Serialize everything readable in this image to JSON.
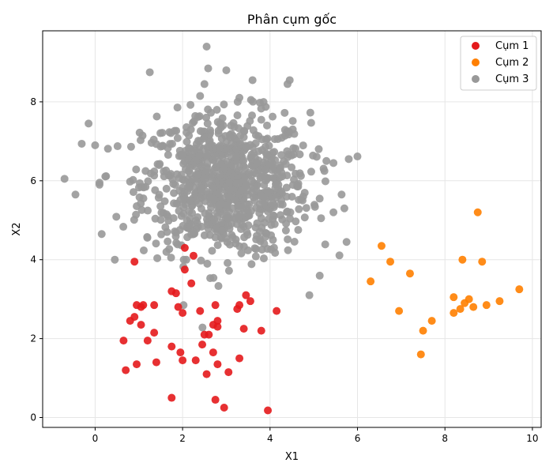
{
  "chart_data": {
    "type": "scatter",
    "title": "Phân cụm gốc",
    "xlabel": "X1",
    "ylabel": "X2",
    "xlim": [
      -1.2,
      10.2
    ],
    "ylim": [
      -0.25,
      9.8
    ],
    "xticks": [
      0,
      2,
      4,
      6,
      8,
      10
    ],
    "yticks": [
      0,
      2,
      4,
      6,
      8
    ],
    "grid": true,
    "legend_position": "top-right",
    "series": [
      {
        "name": "Cụm 1",
        "color": "#e41a1c",
        "points": [
          [
            0.9,
            3.95
          ],
          [
            2.05,
            4.3
          ],
          [
            2.25,
            4.1
          ],
          [
            2.05,
            3.75
          ],
          [
            2.2,
            3.4
          ],
          [
            1.75,
            3.2
          ],
          [
            1.85,
            3.15
          ],
          [
            0.95,
            2.85
          ],
          [
            1.05,
            2.8
          ],
          [
            1.1,
            2.85
          ],
          [
            1.35,
            2.85
          ],
          [
            1.9,
            2.8
          ],
          [
            2.0,
            2.65
          ],
          [
            2.4,
            2.7
          ],
          [
            2.75,
            2.85
          ],
          [
            3.25,
            2.75
          ],
          [
            3.3,
            2.85
          ],
          [
            3.45,
            3.1
          ],
          [
            3.55,
            2.95
          ],
          [
            4.15,
            2.7
          ],
          [
            0.8,
            2.45
          ],
          [
            0.9,
            2.55
          ],
          [
            1.05,
            2.35
          ],
          [
            2.7,
            2.35
          ],
          [
            2.8,
            2.45
          ],
          [
            2.8,
            2.3
          ],
          [
            3.4,
            2.25
          ],
          [
            3.8,
            2.2
          ],
          [
            1.35,
            2.15
          ],
          [
            2.5,
            2.1
          ],
          [
            2.6,
            2.1
          ],
          [
            0.65,
            1.95
          ],
          [
            1.2,
            1.95
          ],
          [
            2.45,
            1.85
          ],
          [
            1.75,
            1.8
          ],
          [
            1.95,
            1.65
          ],
          [
            2.7,
            1.65
          ],
          [
            2.0,
            1.45
          ],
          [
            2.3,
            1.45
          ],
          [
            3.3,
            1.5
          ],
          [
            0.95,
            1.35
          ],
          [
            1.4,
            1.4
          ],
          [
            2.8,
            1.35
          ],
          [
            0.7,
            1.2
          ],
          [
            3.05,
            1.15
          ],
          [
            2.55,
            1.1
          ],
          [
            1.75,
            0.5
          ],
          [
            2.75,
            0.45
          ],
          [
            2.95,
            0.25
          ],
          [
            3.95,
            0.18
          ]
        ]
      },
      {
        "name": "Cụm 2",
        "color": "#ff7f00",
        "points": [
          [
            8.75,
            5.2
          ],
          [
            6.55,
            4.35
          ],
          [
            6.75,
            3.95
          ],
          [
            8.4,
            4.0
          ],
          [
            8.85,
            3.95
          ],
          [
            7.2,
            3.65
          ],
          [
            6.3,
            3.45
          ],
          [
            8.2,
            3.05
          ],
          [
            8.55,
            3.0
          ],
          [
            8.45,
            2.9
          ],
          [
            8.95,
            2.85
          ],
          [
            9.25,
            2.95
          ],
          [
            9.7,
            3.25
          ],
          [
            6.95,
            2.7
          ],
          [
            8.35,
            2.75
          ],
          [
            8.65,
            2.8
          ],
          [
            8.2,
            2.65
          ],
          [
            7.7,
            2.45
          ],
          [
            7.5,
            2.2
          ],
          [
            7.45,
            1.6
          ]
        ]
      },
      {
        "name": "Cụm 3",
        "color": "#999999",
        "generated": true,
        "count": 900,
        "center": [
          3.0,
          5.9
        ],
        "spread": [
          0.95,
          0.9
        ],
        "outliers": [
          [
            2.55,
            9.4
          ],
          [
            1.25,
            8.75
          ],
          [
            -0.7,
            6.05
          ],
          [
            -0.45,
            5.65
          ],
          [
            -0.15,
            7.45
          ],
          [
            0.0,
            6.9
          ],
          [
            0.1,
            5.95
          ],
          [
            0.1,
            5.9
          ],
          [
            0.15,
            4.65
          ],
          [
            0.45,
            4.0
          ],
          [
            4.9,
            3.1
          ],
          [
            5.8,
            6.55
          ],
          [
            5.75,
            4.45
          ],
          [
            5.7,
            5.3
          ],
          [
            5.45,
            5.2
          ],
          [
            5.45,
            6.45
          ],
          [
            3.0,
            8.8
          ],
          [
            4.45,
            8.55
          ],
          [
            4.4,
            8.45
          ],
          [
            3.6,
            8.55
          ],
          [
            2.5,
            8.45
          ]
        ]
      }
    ]
  }
}
